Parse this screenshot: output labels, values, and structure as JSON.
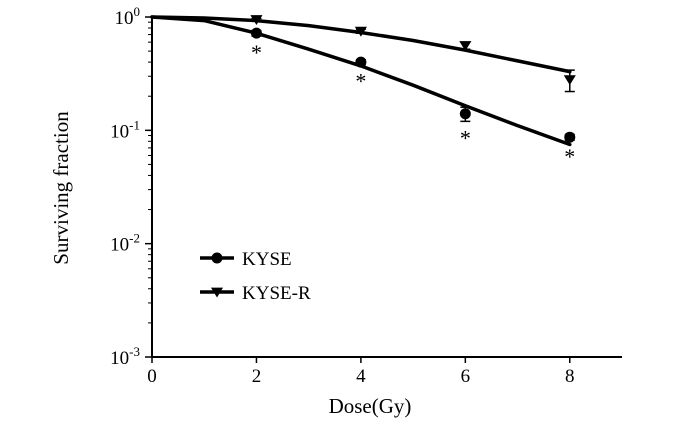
{
  "chart_data": {
    "type": "scatter",
    "xlabel": "Dose(Gy)",
    "ylabel": "Surviving fraction",
    "xlim": [
      0,
      9
    ],
    "ylim": [
      0.001,
      1
    ],
    "y_scale": "log",
    "grid": false,
    "legend_position": "bottom-left",
    "x_ticks": [
      {
        "value": 0,
        "label": "0"
      },
      {
        "value": 2,
        "label": "2"
      },
      {
        "value": 4,
        "label": "4"
      },
      {
        "value": 6,
        "label": "6"
      },
      {
        "value": 8,
        "label": "8"
      }
    ],
    "y_ticks": [
      {
        "value": 1,
        "base": "10",
        "exp": "0"
      },
      {
        "value": 0.1,
        "base": "10",
        "exp": "-1"
      },
      {
        "value": 0.01,
        "base": "10",
        "exp": "-2"
      },
      {
        "value": 0.001,
        "base": "10",
        "exp": "-3"
      }
    ],
    "series": [
      {
        "name": "KYSE",
        "marker": "circle",
        "color": "#000000",
        "points": [
          {
            "x": 2,
            "y": 0.72,
            "err": 0.04,
            "annotation": "*"
          },
          {
            "x": 4,
            "y": 0.4,
            "err": 0.02,
            "annotation": "*"
          },
          {
            "x": 6,
            "y": 0.14,
            "err": 0.02,
            "annotation": "*"
          },
          {
            "x": 8,
            "y": 0.087,
            "err": 0.005,
            "annotation": "*"
          }
        ],
        "fit": [
          {
            "x": 0,
            "y": 1.0
          },
          {
            "x": 1,
            "y": 0.93
          },
          {
            "x": 2,
            "y": 0.72
          },
          {
            "x": 3,
            "y": 0.52
          },
          {
            "x": 4,
            "y": 0.37
          },
          {
            "x": 5,
            "y": 0.25
          },
          {
            "x": 6,
            "y": 0.165
          },
          {
            "x": 7,
            "y": 0.11
          },
          {
            "x": 8,
            "y": 0.075
          }
        ]
      },
      {
        "name": "KYSE-R",
        "marker": "triangle-down",
        "color": "#000000",
        "points": [
          {
            "x": 2,
            "y": 0.95,
            "err": 0.02
          },
          {
            "x": 4,
            "y": 0.75,
            "err": 0.03
          },
          {
            "x": 6,
            "y": 0.56,
            "err": 0.04
          },
          {
            "x": 8,
            "y": 0.28,
            "err": 0.06
          }
        ],
        "fit": [
          {
            "x": 0,
            "y": 1.0
          },
          {
            "x": 1,
            "y": 0.98
          },
          {
            "x": 2,
            "y": 0.93
          },
          {
            "x": 3,
            "y": 0.84
          },
          {
            "x": 4,
            "y": 0.73
          },
          {
            "x": 5,
            "y": 0.62
          },
          {
            "x": 6,
            "y": 0.51
          },
          {
            "x": 7,
            "y": 0.41
          },
          {
            "x": 8,
            "y": 0.33
          }
        ]
      }
    ]
  }
}
